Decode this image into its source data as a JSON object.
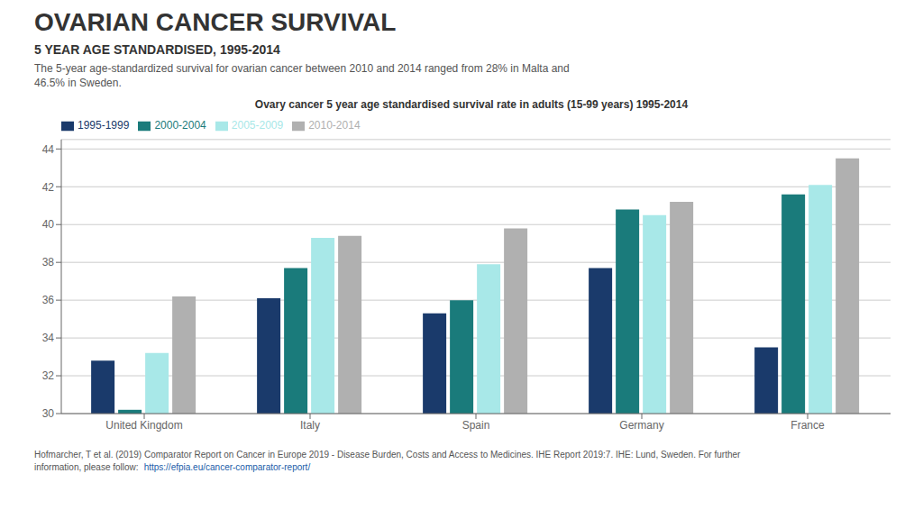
{
  "chart_data": {
    "type": "bar",
    "title": "OVARIAN CANCER SURVIVAL",
    "subtitle": "5 YEAR AGE STANDARDISED, 1995-2014",
    "annotations": [
      "The 5-year age-standardized survival for ovarian cancer between 2010 and 2014 ranged from 28% in Malta and\n46.5% in Sweden.",
      "Ovary cancer 5 year age standardised survival rate in adults (15-99 years) 1995-2014",
      "Hofmarcher, T et al. (2019) Comparator Report on Cancer in Europe 2019 - Disease Burden, Costs and Access to Medicines. IHE Report 2019:7. IHE: Lund, Sweden. For further",
      "information, please follow:",
      "https://efpia.eu/cancer-comparator-report/"
    ],
    "categories": [
      "United Kingdom",
      "Italy",
      "Spain",
      "Germany",
      "France"
    ],
    "series": [
      {
        "name": "1995-1999",
        "color": "#1a3a6b",
        "values": [
          32.8,
          36.1,
          35.3,
          37.7,
          33.5
        ]
      },
      {
        "name": "2000-2004",
        "color": "#1a7b7b",
        "values": [
          30.2,
          37.7,
          36.0,
          40.8,
          41.6
        ]
      },
      {
        "name": "2005-2009",
        "color": "#a8e8e8",
        "values": [
          33.2,
          39.3,
          37.9,
          40.5,
          42.1
        ]
      },
      {
        "name": "2010-2014",
        "color": "#b0b0b0",
        "values": [
          36.2,
          39.4,
          39.8,
          41.2,
          43.5
        ]
      }
    ],
    "ylim": [
      30,
      44.5
    ],
    "yticks": [
      30,
      32,
      34,
      36,
      38,
      40,
      42,
      44
    ],
    "grid": true,
    "legend": "upper left"
  }
}
